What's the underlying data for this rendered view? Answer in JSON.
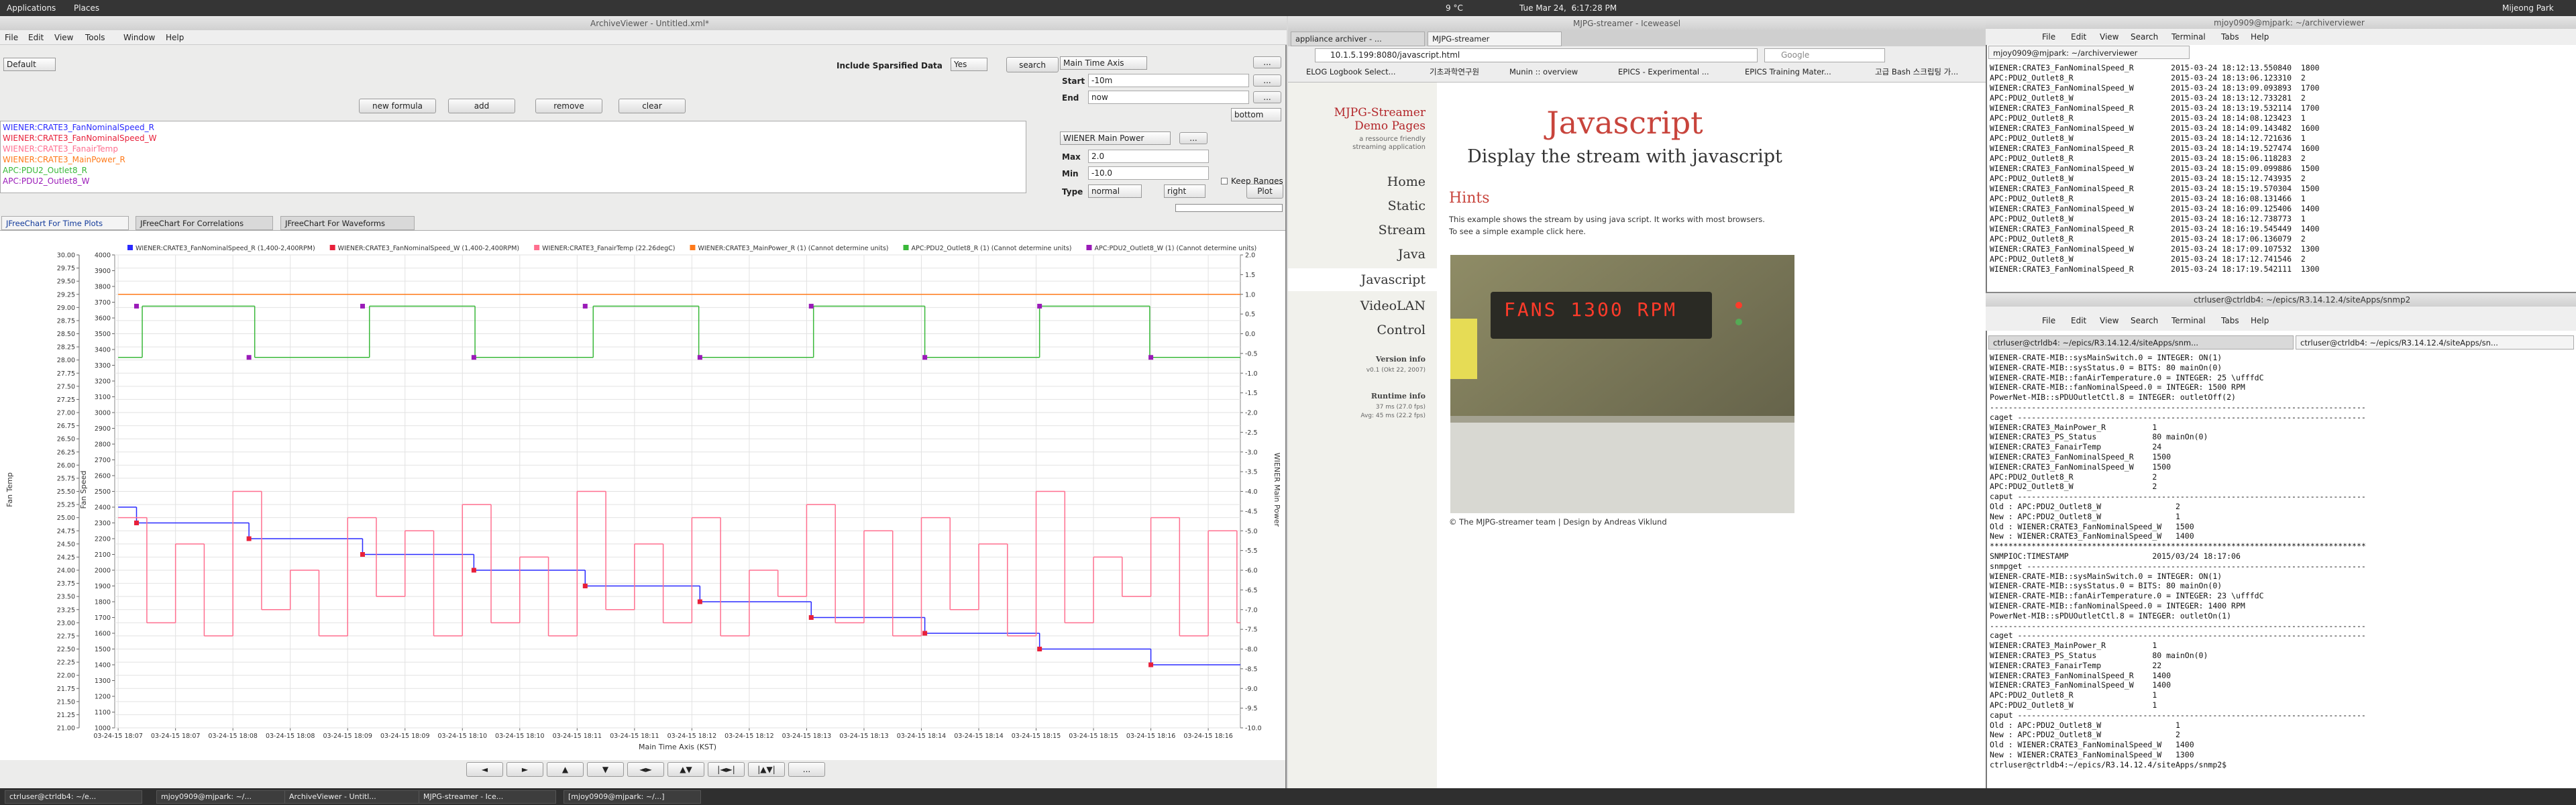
{
  "panel": {
    "menus": [
      "Applications",
      "Places"
    ],
    "weather": "9 °C",
    "clock": "Tue Mar 24,  6:17:28 PM",
    "user": "Mijeong Park"
  },
  "archive_viewer": {
    "title": "ArchiveViewer - Untitled.xml*",
    "menus": [
      "File",
      "Edit",
      "View",
      "Tools",
      "Window",
      "Help"
    ],
    "layout_preset": "Default",
    "sparsified_label": "Include Sparsified Data",
    "sparsified_value": "Yes",
    "search": "search",
    "time_axis": "Main Time Axis",
    "start_label": "Start",
    "start": "-10m",
    "end_label": "End",
    "end": "now",
    "browse": "...",
    "buttons": [
      "new formula",
      "add",
      "remove",
      "clear"
    ],
    "legend_position": "bottom",
    "traces": [
      {
        "name": "WIENER:CRATE3_FanNominalSpeed_R",
        "color": "#2a2aff"
      },
      {
        "name": "WIENER:CRATE3_FanNominalSpeed_W",
        "color": "#e8203a"
      },
      {
        "name": "WIENER:CRATE3_FanairTemp",
        "color": "#ff6f8f"
      },
      {
        "name": "WIENER:CRATE3_MainPower_R",
        "color": "#ff7a1a"
      },
      {
        "name": "APC:PDU2_Outlet8_R",
        "color": "#39b839"
      },
      {
        "name": "APC:PDU2_Outlet8_W",
        "color": "#9a1ab8"
      }
    ],
    "value_axis": "WIENER Main Power",
    "max_label": "Max",
    "max": "2.0",
    "min_label": "Min",
    "min": "-10.0",
    "keep_ranges": "Keep Ranges",
    "type_label": "Type",
    "type": "normal",
    "side": "right",
    "plot": "Plot",
    "tabs": [
      "JFreeChart For Time Plots",
      "JFreeChart For Correlations",
      "JFreeChart For Waveforms"
    ],
    "nav_buttons": [
      "◄",
      "►",
      "▲",
      "▼",
      "◄►",
      "▲▼",
      "|◄►|",
      "|▲▼|",
      "..."
    ]
  },
  "chart_data": {
    "type": "line",
    "xlabel": "Main Time Axis (KST)",
    "ylabel": "Fan Temp",
    "y3label": "Fan Speed",
    "y2label": "WIENER Main Power",
    "grid": true,
    "xlim": [
      -0.03,
      9.78
    ],
    "xticks": [
      {
        "value": 0,
        "label": "03-24-15 18:07"
      },
      {
        "value": 0.5,
        "label": "03-24-15 18:07"
      },
      {
        "value": 1,
        "label": "03-24-15 18:08"
      },
      {
        "value": 1.5,
        "label": "03-24-15 18:08"
      },
      {
        "value": 2,
        "label": "03-24-15 18:09"
      },
      {
        "value": 2.5,
        "label": "03-24-15 18:09"
      },
      {
        "value": 3,
        "label": "03-24-15 18:10"
      },
      {
        "value": 3.5,
        "label": "03-24-15 18:10"
      },
      {
        "value": 4,
        "label": "03-24-15 18:11"
      },
      {
        "value": 4.5,
        "label": "03-24-15 18:11"
      },
      {
        "value": 5,
        "label": "03-24-15 18:12"
      },
      {
        "value": 5.5,
        "label": "03-24-15 18:12"
      },
      {
        "value": 6,
        "label": "03-24-15 18:13"
      },
      {
        "value": 6.5,
        "label": "03-24-15 18:13"
      },
      {
        "value": 7,
        "label": "03-24-15 18:14"
      },
      {
        "value": 7.5,
        "label": "03-24-15 18:14"
      },
      {
        "value": 8,
        "label": "03-24-15 18:15"
      },
      {
        "value": 8.5,
        "label": "03-24-15 18:15"
      },
      {
        "value": 9,
        "label": "03-24-15 18:16"
      },
      {
        "value": 9.5,
        "label": "03-24-15 18:16"
      }
    ],
    "ylim": [
      21,
      30
    ],
    "yticks": [
      {
        "value": 30,
        "label": "30.00"
      },
      {
        "value": 29.75,
        "label": "29.75"
      },
      {
        "value": 29.5,
        "label": "29.50"
      },
      {
        "value": 29.25,
        "label": "29.25"
      },
      {
        "value": 29,
        "label": "29.00"
      },
      {
        "value": 28.75,
        "label": "28.75"
      },
      {
        "value": 28.5,
        "label": "28.50"
      },
      {
        "value": 28.25,
        "label": "28.25"
      },
      {
        "value": 28,
        "label": "28.00"
      },
      {
        "value": 27.75,
        "label": "27.75"
      },
      {
        "value": 27.5,
        "label": "27.50"
      },
      {
        "value": 27.25,
        "label": "27.25"
      },
      {
        "value": 27,
        "label": "27.00"
      },
      {
        "value": 26.75,
        "label": "26.75"
      },
      {
        "value": 26.5,
        "label": "26.50"
      },
      {
        "value": 26.25,
        "label": "26.25"
      },
      {
        "value": 26,
        "label": "26.00"
      },
      {
        "value": 25.75,
        "label": "25.75"
      },
      {
        "value": 25.5,
        "label": "25.50"
      },
      {
        "value": 25.25,
        "label": "25.25"
      },
      {
        "value": 25,
        "label": "25.00"
      },
      {
        "value": 24.75,
        "label": "24.75"
      },
      {
        "value": 24.5,
        "label": "24.50"
      },
      {
        "value": 24.25,
        "label": "24.25"
      },
      {
        "value": 24,
        "label": "24.00"
      },
      {
        "value": 23.75,
        "label": "23.75"
      },
      {
        "value": 23.5,
        "label": "23.50"
      },
      {
        "value": 23.25,
        "label": "23.25"
      },
      {
        "value": 23,
        "label": "23.00"
      },
      {
        "value": 22.75,
        "label": "22.75"
      },
      {
        "value": 22.5,
        "label": "22.50"
      },
      {
        "value": 22.25,
        "label": "22.25"
      },
      {
        "value": 22,
        "label": "22.00"
      },
      {
        "value": 21.75,
        "label": "21.75"
      },
      {
        "value": 21.5,
        "label": "21.50"
      },
      {
        "value": 21.25,
        "label": "21.25"
      },
      {
        "value": 21,
        "label": "21.00"
      }
    ],
    "y3lim": [
      1000,
      4000
    ],
    "y3ticks": [
      4000,
      3900,
      3800,
      3700,
      3600,
      3500,
      3400,
      3300,
      3200,
      3100,
      3000,
      2900,
      2800,
      2700,
      2600,
      2500,
      2400,
      2300,
      2200,
      2100,
      2000,
      1900,
      1800,
      1700,
      1600,
      1500,
      1400,
      1300,
      1200,
      1100,
      1000
    ],
    "y2lim": [
      -10,
      2
    ],
    "y2ticks": [
      {
        "value": 2,
        "label": "2.0"
      },
      {
        "value": 1.5,
        "label": "1.5"
      },
      {
        "value": 1,
        "label": "1.0"
      },
      {
        "value": 0.5,
        "label": "0.5"
      },
      {
        "value": 0,
        "label": "0.0"
      },
      {
        "value": -0.5,
        "label": "-0.5"
      },
      {
        "value": -1,
        "label": "-1.0"
      },
      {
        "value": -1.5,
        "label": "-1.5"
      },
      {
        "value": -2,
        "label": "-2.0"
      },
      {
        "value": -2.5,
        "label": "-2.5"
      },
      {
        "value": -3,
        "label": "-3.0"
      },
      {
        "value": -3.5,
        "label": "-3.5"
      },
      {
        "value": -4,
        "label": "-4.0"
      },
      {
        "value": -4.5,
        "label": "-4.5"
      },
      {
        "value": -5,
        "label": "-5.0"
      },
      {
        "value": -5.5,
        "label": "-5.5"
      },
      {
        "value": -6,
        "label": "-6.0"
      },
      {
        "value": -6.5,
        "label": "-6.5"
      },
      {
        "value": -7,
        "label": "-7.0"
      },
      {
        "value": -7.5,
        "label": "-7.5"
      },
      {
        "value": -8,
        "label": "-8.0"
      },
      {
        "value": -8.5,
        "label": "-8.5"
      },
      {
        "value": -9,
        "label": "-9.0"
      },
      {
        "value": -9.5,
        "label": "-9.5"
      },
      {
        "value": -10,
        "label": "-10.0"
      }
    ],
    "series": [
      {
        "name": "WIENER:CRATE3_FanNominalSpeed_R (1,400-2,400RPM)",
        "color": "#2a2aff",
        "axis": "y3",
        "style": "step",
        "x": [
          0,
          0.16,
          1.14,
          2.13,
          3.1,
          4.07,
          5.07,
          6.04,
          7.03,
          8.03,
          9.0
        ],
        "values": [
          2400,
          2300,
          2200,
          2100,
          2000,
          1900,
          1800,
          1700,
          1600,
          1500,
          1400
        ]
      },
      {
        "name": "WIENER:CRATE3_FanNominalSpeed_W (1,400-2,400RPM)",
        "color": "#e8203a",
        "axis": "y3",
        "style": "markers",
        "x": [
          0.16,
          1.14,
          2.13,
          3.1,
          4.07,
          5.07,
          6.04,
          7.03,
          8.03,
          9.0
        ],
        "values": [
          2300,
          2200,
          2100,
          2000,
          1900,
          1800,
          1700,
          1600,
          1500,
          1400
        ]
      },
      {
        "name": "WIENER:CRATE3_FanairTemp (22.26degC)",
        "color": "#ff6f8f",
        "axis": "y",
        "style": "step",
        "x": [
          0,
          0.25,
          0.5,
          0.75,
          1,
          1.25,
          1.5,
          1.75,
          2,
          2.25,
          2.5,
          2.75,
          3,
          3.25,
          3.5,
          3.75,
          4,
          4.25,
          4.5,
          4.75,
          5,
          5.25,
          5.5,
          5.75,
          6,
          6.25,
          6.5,
          6.75,
          7,
          7.25,
          7.5,
          7.75,
          8,
          8.25,
          8.5,
          8.75,
          9,
          9.25,
          9.5,
          9.75
        ],
        "values": [
          25,
          23,
          24.5,
          22.75,
          25.5,
          23.25,
          24,
          22.75,
          25,
          23.5,
          24.75,
          22.75,
          25.25,
          23,
          24.25,
          22.75,
          25.5,
          23.25,
          24.5,
          23,
          25,
          22.75,
          24,
          23.5,
          25.25,
          23,
          24.75,
          22.75,
          25,
          23.25,
          24.5,
          22.75,
          25.5,
          23,
          24.25,
          23.5,
          25,
          22.75,
          24.75,
          23
        ]
      },
      {
        "name": "WIENER:CRATE3_MainPower_R (1) (Cannot determine units)",
        "color": "#ff7a1a",
        "axis": "y2",
        "style": "step",
        "x": [
          0,
          9.75
        ],
        "values": [
          1,
          1
        ]
      },
      {
        "name": "APC:PDU2_Outlet8_R (1) (Cannot determine units)",
        "color": "#39b839",
        "axis": "y2",
        "style": "step",
        "x": [
          0,
          0.21,
          1.19,
          2.19,
          3.11,
          4.14,
          5.06,
          6.06,
          7.03,
          8.03,
          8.99
        ],
        "values": [
          -0.6,
          0.7,
          -0.6,
          0.7,
          -0.6,
          0.7,
          -0.6,
          0.7,
          -0.6,
          0.7,
          -0.6
        ]
      },
      {
        "name": "APC:PDU2_Outlet8_W (1) (Cannot determine units)",
        "color": "#9a1ab8",
        "axis": "y2",
        "style": "markers",
        "x": [
          0.16,
          1.14,
          2.13,
          3.1,
          4.07,
          5.07,
          6.04,
          7.03,
          8.03,
          9.0
        ],
        "values": [
          0.7,
          -0.6,
          0.7,
          -0.6,
          0.7,
          -0.6,
          0.7,
          -0.6,
          0.7,
          -0.6
        ]
      }
    ]
  },
  "browser": {
    "window_title": "MJPG-streamer - Iceweasel",
    "tabs": [
      "appliance archiver - ...",
      "MJPG-streamer"
    ],
    "url": "10.1.5.199:8080/javascript.html",
    "search_engine": "Google",
    "bookmarks": [
      "ELOG Logbook Select...",
      "기초과학연구원",
      "Munin :: overview",
      "EPICS - Experimental ...",
      "EPICS Training Mater...",
      "고급 Bash 스크립팅 가..."
    ],
    "page": {
      "site_title": [
        "MJPG-Streamer",
        "Demo Pages"
      ],
      "tagline": [
        "a ressource friendly",
        "streaming application"
      ],
      "nav": [
        "Home",
        "Static",
        "Stream",
        "Java",
        "Javascript",
        "VideoLAN",
        "Control"
      ],
      "version_title": "Version info",
      "version": "v0.1 (Okt 22, 2007)",
      "runtime_title": "Runtime info",
      "runtime": [
        "37 ms (27.0 fps)",
        "Avg: 45 ms (22.2 fps)"
      ],
      "heading": "Javascript",
      "subheading": "Display the stream with javascript",
      "hints": "Hints",
      "hint_text": [
        "This example shows the stream by using java script. It works with most browsers.",
        "To see a simple example click here."
      ],
      "display_text": "FANS 1300 RPM",
      "footer": "© The MJPG-streamer team | Design by Andreas Viklund"
    }
  },
  "terminal_top": {
    "title": "mjoy0909@mjpark: ~/archiverviewer",
    "menus": [
      "File",
      "Edit",
      "View",
      "Search",
      "Terminal",
      "Tabs",
      "Help"
    ],
    "tab": "mjoy0909@mjpark: ~/archiverviewer",
    "lines": [
      "WIENER:CRATE3_FanNominalSpeed_R        2015-03-24 18:12:13.550840  1800",
      "APC:PDU2_Outlet8_R                     2015-03-24 18:13:06.123310  2",
      "WIENER:CRATE3_FanNominalSpeed_W        2015-03-24 18:13:09.093893  1700",
      "APC:PDU2_Outlet8_W                     2015-03-24 18:13:12.733281  2",
      "WIENER:CRATE3_FanNominalSpeed_R        2015-03-24 18:13:19.532114  1700",
      "APC:PDU2_Outlet8_R                     2015-03-24 18:14:08.123423  1",
      "WIENER:CRATE3_FanNominalSpeed_W        2015-03-24 18:14:09.143482  1600",
      "APC:PDU2_Outlet8_W                     2015-03-24 18:14:12.721636  1",
      "WIENER:CRATE3_FanNominalSpeed_R        2015-03-24 18:14:19.527474  1600",
      "APC:PDU2_Outlet8_R                     2015-03-24 18:15:06.118283  2",
      "WIENER:CRATE3_FanNominalSpeed_W        2015-03-24 18:15:09.099886  1500",
      "APC:PDU2_Outlet8_W                     2015-03-24 18:15:12.743935  2",
      "WIENER:CRATE3_FanNominalSpeed_R        2015-03-24 18:15:19.570304  1500",
      "APC:PDU2_Outlet8_R                     2015-03-24 18:16:08.131466  1",
      "WIENER:CRATE3_FanNominalSpeed_W        2015-03-24 18:16:09.125406  1400",
      "APC:PDU2_Outlet8_W                     2015-03-24 18:16:12.738773  1",
      "WIENER:CRATE3_FanNominalSpeed_R        2015-03-24 18:16:19.545449  1400",
      "APC:PDU2_Outlet8_R                     2015-03-24 18:17:06.136079  2",
      "WIENER:CRATE3_FanNominalSpeed_W        2015-03-24 18:17:09.107532  1300",
      "APC:PDU2_Outlet8_W                     2015-03-24 18:17:12.741546  2",
      "WIENER:CRATE3_FanNominalSpeed_R        2015-03-24 18:17:19.542111  1300"
    ]
  },
  "terminal_bottom": {
    "title": "ctrluser@ctrldb4: ~/epics/R3.14.12.4/siteApps/snmp2",
    "menus": [
      "File",
      "Edit",
      "View",
      "Search",
      "Terminal",
      "Tabs",
      "Help"
    ],
    "tabs": [
      "ctrluser@ctrldb4: ~/epics/R3.14.12.4/siteApps/snm...",
      "ctrluser@ctrldb4: ~/epics/R3.14.12.4/siteApps/sn..."
    ],
    "lines": [
      "WIENER-CRATE-MIB::sysMainSwitch.0 = INTEGER: ON(1)",
      "WIENER-CRATE-MIB::sysStatus.0 = BITS: 80 mainOn(0)",
      "WIENER-CRATE-MIB::fanAirTemperature.0 = INTEGER: 25 \\ufffdC",
      "WIENER-CRATE-MIB::fanNominalSpeed.0 = INTEGER: 1500 RPM",
      "PowerNet-MIB::sPDUOutletCtl.8 = INTEGER: outletOff(2)",
      "---------------------------------------------------------------------------------",
      "caget ---------------------------------------------------------------------------",
      "WIENER:CRATE3_MainPower_R          1",
      "WIENER:CRATE3_PS_Status            80 mainOn(0)",
      "WIENER:CRATE3_FanairTemp           24",
      "WIENER:CRATE3_FanNominalSpeed_R    1500",
      "WIENER:CRATE3_FanNominalSpeed_W    1500",
      "APC:PDU2_Outlet8_R                 2",
      "APC:PDU2_Outlet8_W                 2",
      "caput ---------------------------------------------------------------------------",
      "Old : APC:PDU2_Outlet8_W                2",
      "New : APC:PDU2_Outlet8_W                1",
      "Old : WIENER:CRATE3_FanNominalSpeed_W   1500",
      "New : WIENER:CRATE3_FanNominalSpeed_W   1400",
      "*********************************************************************************",
      "SNMPIOC:TIMESTAMP                  2015/03/24 18:17:06",
      "snmpget -------------------------------------------------------------------------",
      "WIENER-CRATE-MIB::sysMainSwitch.0 = INTEGER: ON(1)",
      "WIENER-CRATE-MIB::sysStatus.0 = BITS: 80 mainOn(0)",
      "WIENER-CRATE-MIB::fanAirTemperature.0 = INTEGER: 23 \\ufffdC",
      "WIENER-CRATE-MIB::fanNominalSpeed.0 = INTEGER: 1400 RPM",
      "PowerNet-MIB::sPDUOutletCtl.8 = INTEGER: outletOn(1)",
      "---------------------------------------------------------------------------------",
      "caget ---------------------------------------------------------------------------",
      "WIENER:CRATE3_MainPower_R          1",
      "WIENER:CRATE3_PS_Status            80 mainOn(0)",
      "WIENER:CRATE3_FanairTemp           22",
      "WIENER:CRATE3_FanNominalSpeed_R    1400",
      "WIENER:CRATE3_FanNominalSpeed_W    1400",
      "APC:PDU2_Outlet8_R                 1",
      "APC:PDU2_Outlet8_W                 1",
      "caput ---------------------------------------------------------------------------",
      "Old : APC:PDU2_Outlet8_W                1",
      "New : APC:PDU2_Outlet8_W                2",
      "Old : WIENER:CRATE3_FanNominalSpeed_W   1400",
      "New : WIENER:CRATE3_FanNominalSpeed_W   1300",
      "ctrluser@ctrldb4:~/epics/R3.14.12.4/siteApps/snmp2$"
    ]
  },
  "taskbar": {
    "items": [
      "ctrluser@ctrldb4: ~/e...",
      "mjoy0909@mjpark: ~/...",
      "ArchiveViewer - Untitl...",
      "MJPG-streamer - Ice...",
      "[mjoy0909@mjpark: ~/...]"
    ]
  }
}
